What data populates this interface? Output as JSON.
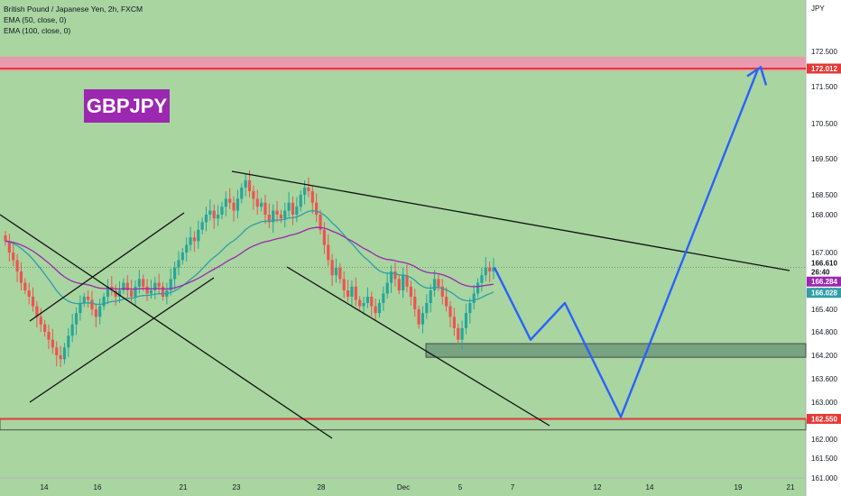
{
  "header": {
    "symbol_line": "British Pound / Japanese Yen, 2h, FXCM",
    "ema1": "EMA (50, close, 0)",
    "ema2": "EMA (100, close, 0)"
  },
  "badge": "GBPJPY",
  "axis": {
    "currency": "JPY"
  },
  "colors": {
    "background": "#a8d5a0",
    "candle_up": "#26a69a",
    "candle_down": "#ef5350",
    "ema50": "#2e9ea8",
    "ema100": "#9c27b0",
    "projection": "#2962ff",
    "resistance_zone": "#f48fb1",
    "resistance_line": "#e53935",
    "support_zone": "#6f9a7a"
  },
  "chart_data": {
    "type": "candlestick",
    "title": "British Pound / Japanese Yen, 2h, FXCM",
    "indicators": [
      "EMA (50, close, 0)",
      "EMA (100, close, 0)"
    ],
    "ylim": [
      161.0,
      173.5
    ],
    "y_ticks": [
      "172.500",
      "171.500",
      "170.500",
      "169.500",
      "168.500",
      "168.000",
      "167.000",
      "166.000",
      "165.400",
      "164.800",
      "164.200",
      "163.600",
      "163.000",
      "162.000",
      "161.500",
      "161.000"
    ],
    "x_ticks": [
      "14",
      "16",
      "21",
      "23",
      "28",
      "Dec",
      "5",
      "7",
      "12",
      "14",
      "19",
      "21"
    ],
    "price_labels": [
      {
        "value": "172.012",
        "color": "#e53935"
      },
      {
        "value": "166.610",
        "color": "#131722"
      },
      {
        "value": "26:40",
        "color": "#131722"
      },
      {
        "value": "166.284",
        "color": "#9c27b0"
      },
      {
        "value": "166.028",
        "color": "#2e9ea8"
      },
      {
        "value": "162.550",
        "color": "#e53935"
      }
    ],
    "levels": {
      "resistance": 172.012,
      "support": 162.55,
      "current": 166.61
    },
    "support_zone": [
      164.15,
      164.5
    ],
    "projection_path": [
      166.6,
      164.6,
      165.6,
      162.6,
      172.0
    ],
    "closes": [
      167.3,
      167.0,
      166.8,
      166.5,
      166.2,
      166.0,
      165.8,
      165.5,
      165.2,
      165.0,
      164.8,
      164.6,
      164.4,
      164.2,
      164.1,
      164.4,
      164.7,
      165.0,
      165.3,
      165.6,
      165.8,
      165.7,
      165.4,
      165.2,
      165.5,
      165.8,
      166.1,
      166.0,
      165.8,
      166.0,
      166.2,
      166.0,
      165.8,
      166.1,
      166.3,
      166.1,
      165.9,
      166.0,
      166.2,
      166.1,
      165.8,
      166.0,
      166.3,
      166.6,
      166.8,
      167.0,
      167.2,
      167.4,
      167.3,
      167.6,
      167.8,
      168.0,
      168.1,
      167.9,
      168.0,
      168.2,
      168.4,
      168.3,
      168.1,
      168.4,
      168.7,
      168.9,
      168.6,
      168.4,
      168.2,
      168.3,
      168.0,
      167.8,
      168.1,
      168.0,
      167.9,
      168.1,
      168.3,
      168.0,
      168.2,
      168.5,
      168.7,
      168.6,
      168.3,
      168.0,
      167.6,
      167.2,
      166.8,
      166.4,
      166.6,
      166.3,
      166.0,
      165.8,
      166.1,
      165.7,
      165.5,
      165.6,
      165.8,
      165.5,
      165.3,
      165.6,
      165.9,
      166.2,
      166.5,
      166.3,
      166.0,
      166.4,
      166.1,
      165.8,
      165.4,
      165.0,
      165.3,
      165.6,
      166.0,
      166.3,
      166.1,
      165.8,
      165.5,
      165.2,
      164.9,
      164.6,
      164.9,
      165.3,
      165.6,
      165.9,
      166.2,
      166.4,
      166.6,
      166.5,
      166.61
    ]
  }
}
